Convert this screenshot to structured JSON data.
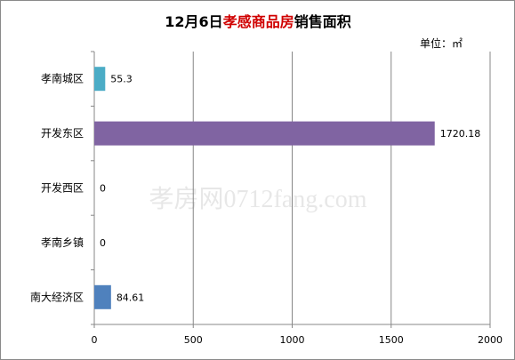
{
  "chart_data": {
    "type": "bar",
    "orientation": "horizontal",
    "title": {
      "prefix": "12月6日",
      "highlight": "孝感商品房",
      "suffix": "销售面积"
    },
    "unit_label": "单位：㎡",
    "categories": [
      "孝南城区",
      "开发东区",
      "开发西区",
      "孝南乡镇",
      "南大经济区"
    ],
    "values": [
      55.3,
      1720.18,
      0,
      0,
      84.61
    ],
    "value_labels": [
      "55.3",
      "1720.18",
      "0",
      "0",
      "84.61"
    ],
    "bar_colors": [
      "#4bacc6",
      "#8064a2",
      "#9bbb59",
      "#f79646",
      "#4f81bd"
    ],
    "xlim": [
      0,
      2000
    ],
    "xticks": [
      0,
      500,
      1000,
      1500,
      2000
    ],
    "xtick_labels": [
      "0",
      "500",
      "1000",
      "1500",
      "2000"
    ],
    "grid": "vertical",
    "legend": "none"
  },
  "watermark": {
    "text": "孝房网0712fang.com"
  }
}
